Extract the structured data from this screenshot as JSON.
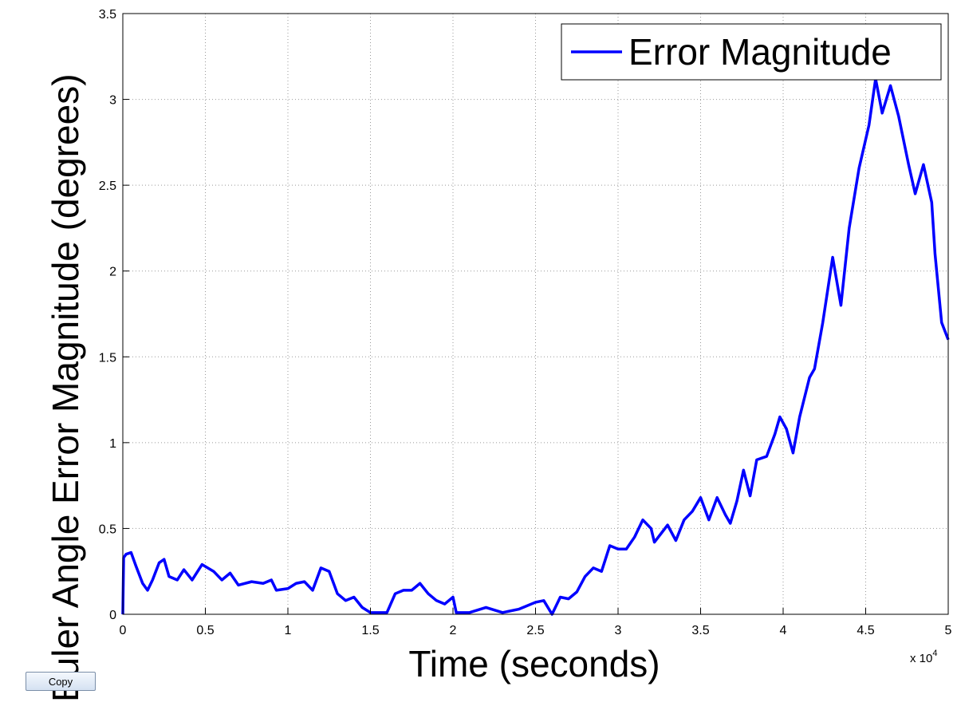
{
  "chart_data": {
    "type": "line",
    "xlabel": "Time (seconds)",
    "ylabel": "Euler Angle Error Magnitude (degrees)",
    "x_multiplier_base": "x 10",
    "x_multiplier_exponent": "4",
    "xlim": [
      0,
      5
    ],
    "ylim": [
      0,
      3.5
    ],
    "xticks": [
      0,
      0.5,
      1,
      1.5,
      2,
      2.5,
      3,
      3.5,
      4,
      4.5,
      5
    ],
    "yticks": [
      0,
      0.5,
      1,
      1.5,
      2,
      2.5,
      3,
      3.5
    ],
    "grid": true,
    "legend_position": "upper-right",
    "x": [
      0,
      0.005,
      0.02,
      0.05,
      0.08,
      0.12,
      0.15,
      0.18,
      0.22,
      0.25,
      0.28,
      0.33,
      0.37,
      0.42,
      0.48,
      0.55,
      0.6,
      0.65,
      0.7,
      0.78,
      0.85,
      0.9,
      0.93,
      1.0,
      1.05,
      1.1,
      1.15,
      1.2,
      1.25,
      1.3,
      1.35,
      1.4,
      1.45,
      1.5,
      1.6,
      1.65,
      1.7,
      1.75,
      1.8,
      1.85,
      1.9,
      1.95,
      2.0,
      2.02,
      2.1,
      2.2,
      2.3,
      2.4,
      2.5,
      2.55,
      2.6,
      2.65,
      2.7,
      2.75,
      2.8,
      2.85,
      2.9,
      2.95,
      3.0,
      3.05,
      3.1,
      3.15,
      3.2,
      3.22,
      3.3,
      3.35,
      3.4,
      3.45,
      3.5,
      3.55,
      3.6,
      3.65,
      3.68,
      3.72,
      3.76,
      3.8,
      3.84,
      3.9,
      3.95,
      3.98,
      4.02,
      4.06,
      4.1,
      4.16,
      4.19,
      4.24,
      4.3,
      4.35,
      4.4,
      4.46,
      4.52,
      4.56,
      4.6,
      4.65,
      4.7,
      4.76,
      4.8,
      4.85,
      4.9,
      4.92,
      4.96,
      5.0
    ],
    "series": [
      {
        "name": "Error Magnitude",
        "color": "#0000ff",
        "values": [
          0,
          0.33,
          0.35,
          0.36,
          0.28,
          0.18,
          0.14,
          0.2,
          0.3,
          0.32,
          0.22,
          0.2,
          0.26,
          0.2,
          0.29,
          0.25,
          0.2,
          0.24,
          0.17,
          0.19,
          0.18,
          0.2,
          0.14,
          0.15,
          0.18,
          0.19,
          0.14,
          0.27,
          0.25,
          0.12,
          0.08,
          0.1,
          0.04,
          0.01,
          0.01,
          0.12,
          0.14,
          0.14,
          0.18,
          0.12,
          0.08,
          0.06,
          0.1,
          0.01,
          0.01,
          0.04,
          0.01,
          0.03,
          0.07,
          0.08,
          0.0,
          0.1,
          0.09,
          0.13,
          0.22,
          0.27,
          0.25,
          0.4,
          0.38,
          0.38,
          0.45,
          0.55,
          0.5,
          0.42,
          0.52,
          0.43,
          0.55,
          0.6,
          0.68,
          0.55,
          0.68,
          0.58,
          0.53,
          0.66,
          0.84,
          0.69,
          0.9,
          0.92,
          1.05,
          1.15,
          1.08,
          0.94,
          1.15,
          1.38,
          1.43,
          1.7,
          2.08,
          1.8,
          2.25,
          2.6,
          2.85,
          3.12,
          2.92,
          3.08,
          2.9,
          2.62,
          2.45,
          2.62,
          2.4,
          2.1,
          1.7,
          1.6
        ]
      }
    ]
  },
  "copy_button": "Copy"
}
